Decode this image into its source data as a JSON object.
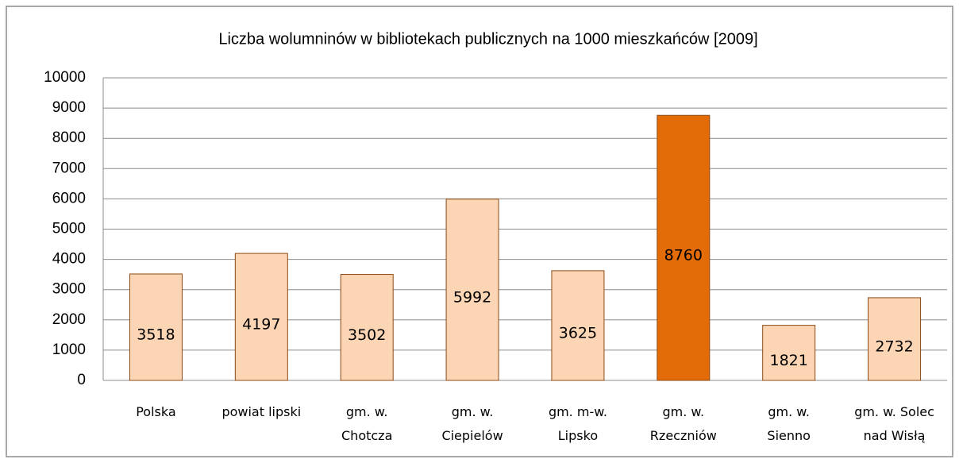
{
  "chart_data": {
    "type": "bar",
    "title": "Liczba wolumninów w bibliotekach publicznych na 1000 mieszkańców  [2009]",
    "categories": [
      "Polska",
      "powiat lipski",
      "gm. w.\nChotcza",
      "gm. w.\nCiepielów",
      "gm. m-w.\nLipsko",
      "gm. w.\nRzeczniów",
      "gm. w.\nSienno",
      "gm. w. Solec\nnad Wisłą"
    ],
    "values": [
      3518,
      4197,
      3502,
      5992,
      3625,
      8760,
      1821,
      2732
    ],
    "colors": [
      "#fcd5b5",
      "#fcd5b5",
      "#fcd5b5",
      "#fcd5b5",
      "#fcd5b5",
      "#e36c09",
      "#fcd5b5",
      "#fcd5b5"
    ],
    "ylim": [
      0,
      10000
    ],
    "yticks": [
      0,
      1000,
      2000,
      3000,
      4000,
      5000,
      6000,
      7000,
      8000,
      9000,
      10000
    ],
    "grid": true
  }
}
